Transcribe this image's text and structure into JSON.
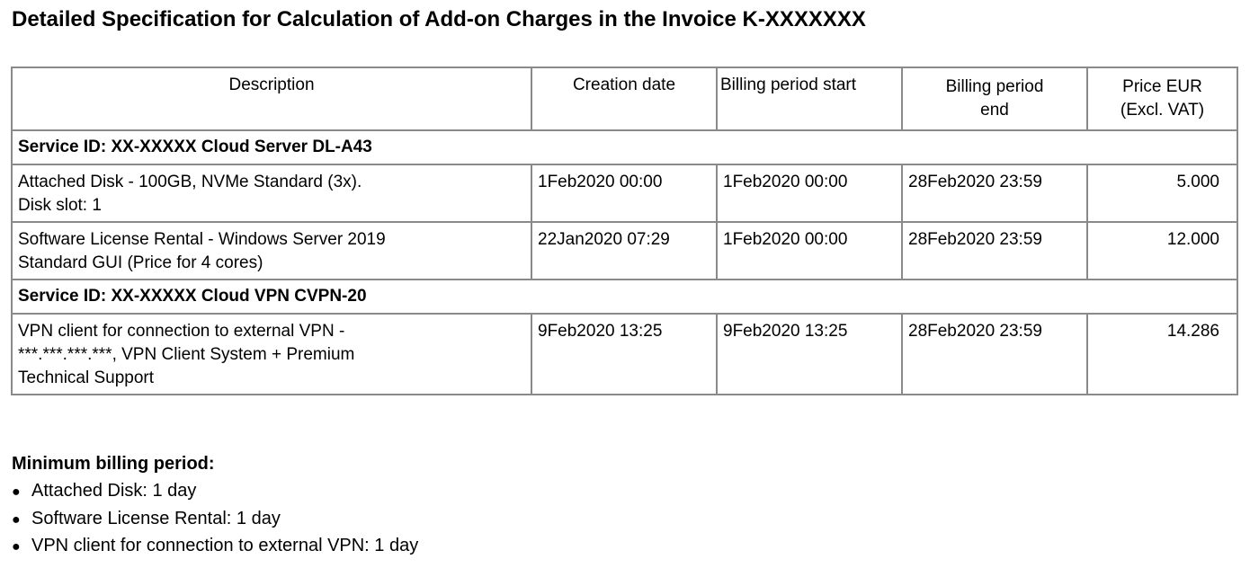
{
  "title": "Detailed Specification for Calculation of Add-on Charges in the Invoice K-XXXXXXX",
  "table": {
    "headers": [
      "Description",
      "Creation date",
      "Billing period start",
      "Billing period\nend",
      "Price EUR\n(Excl. VAT)"
    ],
    "groups": [
      {
        "service": "Service ID: XX-XXXXX Cloud Server DL-A43",
        "rows": [
          {
            "description": "Attached Disk - 100GB, NVMe Standard (3x).\nDisk slot: 1",
            "created": "1Feb2020 00:00",
            "start": "1Feb2020 00:00",
            "end": "28Feb2020 23:59",
            "price": "5.000"
          },
          {
            "description": "Software License Rental - Windows Server 2019\nStandard GUI (Price for 4 cores)",
            "created": "22Jan2020 07:29",
            "start": "1Feb2020 00:00",
            "end": "28Feb2020 23:59",
            "price": "12.000"
          }
        ]
      },
      {
        "service": "Service ID: XX-XXXXX Cloud VPN CVPN-20",
        "rows": [
          {
            "description": "VPN client for connection to external VPN -\n***.***.***.***, VPN Client System + Premium\nTechnical Support",
            "created": "9Feb2020 13:25",
            "start": "9Feb2020 13:25",
            "end": "28Feb2020 23:59",
            "price": "14.286"
          }
        ]
      }
    ]
  },
  "minimum": {
    "heading": "Minimum billing period:",
    "items": [
      "Attached Disk: 1 day",
      "Software License Rental: 1 day",
      "VPN client for connection to external VPN: 1 day"
    ]
  }
}
